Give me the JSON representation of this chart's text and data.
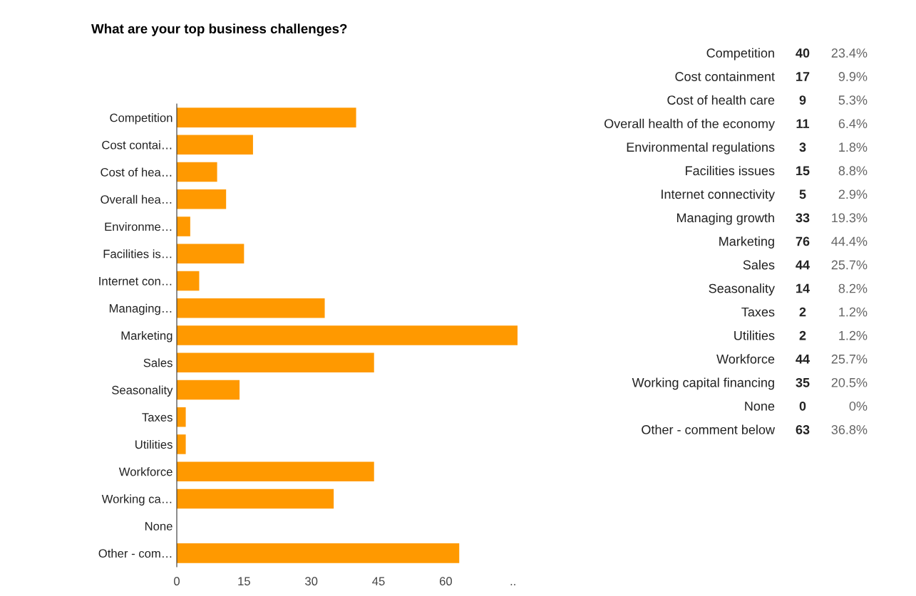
{
  "chart_data": {
    "type": "bar",
    "orientation": "horizontal",
    "title": "What are your top business challenges?",
    "categories": [
      "Competition",
      "Cost contai…",
      "Cost of hea…",
      "Overall hea…",
      "Environme…",
      "Facilities is…",
      "Internet con…",
      "Managing…",
      "Marketing",
      "Sales",
      "Seasonality",
      "Taxes",
      "Utilities",
      "Workforce",
      "Working ca…",
      "None",
      "Other - com…"
    ],
    "values": [
      40,
      17,
      9,
      11,
      3,
      15,
      5,
      33,
      76,
      44,
      14,
      2,
      2,
      44,
      35,
      0,
      63
    ],
    "color": "#ff9900",
    "xlim": [
      0,
      76
    ],
    "xticks": [
      0,
      15,
      30,
      45,
      60,
      {
        "value": 75,
        "label": ".."
      }
    ],
    "grid": false,
    "annotations": [
      "Competition",
      "Cost containment",
      "Cost of health care",
      "Overall health of the economy",
      "Environmental regulations",
      "Facilities issues",
      "Internet connectivity",
      "Managing growth",
      "Marketing",
      "Sales",
      "Seasonality",
      "Taxes",
      "Utilities",
      "Workforce",
      "Working capital financing",
      "None",
      "Other - comment below",
      "40",
      "17",
      "9",
      "11",
      "3",
      "15",
      "5",
      "33",
      "76",
      "44",
      "14",
      "2",
      "2",
      "44",
      "35",
      "0",
      "63",
      "23.4%",
      "9.9%",
      "5.3%",
      "6.4%",
      "1.8%",
      "8.8%",
      "2.9%",
      "19.3%",
      "44.4%",
      "25.7%",
      "8.2%",
      "1.2%",
      "1.2%",
      "25.7%",
      "20.5%",
      "0%",
      "36.8%"
    ]
  }
}
